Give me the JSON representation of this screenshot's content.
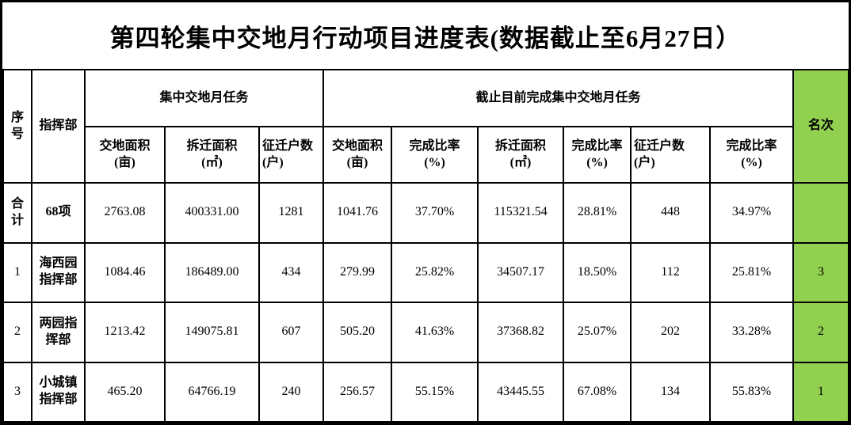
{
  "title": "第四轮集中交地月行动项目进度表(数据截止至6月27日）",
  "colors": {
    "rank_column_bg": "#92d050",
    "grid_border": "#000000",
    "background": "#ffffff"
  },
  "table": {
    "head": {
      "serial": "序号",
      "hq": "指挥部",
      "group_task": "集中交地月任务",
      "group_done": "截止目前完成集中交地月任务",
      "rank": "名次",
      "subs": [
        "交地面积\n(亩)",
        "拆迁面积\n(㎡)",
        "征迁户数\n(户)",
        "交地面积\n(亩)",
        "完成比率\n(%)",
        "拆迁面积\n(㎡)",
        "完成比率\n(%)",
        "征迁户数\n(户)",
        "完成比率\n(%)"
      ]
    },
    "rows": [
      {
        "serial": "合计",
        "hq": "68项",
        "cells": [
          "2763.08",
          "400331.00",
          "1281",
          "1041.76",
          "37.70%",
          "115321.54",
          "28.81%",
          "448",
          "34.97%"
        ],
        "rank": ""
      },
      {
        "serial": "1",
        "hq": "海西园指挥部",
        "cells": [
          "1084.46",
          "186489.00",
          "434",
          "279.99",
          "25.82%",
          "34507.17",
          "18.50%",
          "112",
          "25.81%"
        ],
        "rank": "3"
      },
      {
        "serial": "2",
        "hq": "两园指挥部",
        "cells": [
          "1213.42",
          "149075.81",
          "607",
          "505.20",
          "41.63%",
          "37368.82",
          "25.07%",
          "202",
          "33.28%"
        ],
        "rank": "2"
      },
      {
        "serial": "3",
        "hq": "小城镇指挥部",
        "cells": [
          "465.20",
          "64766.19",
          "240",
          "256.57",
          "55.15%",
          "43445.55",
          "67.08%",
          "134",
          "55.83%"
        ],
        "rank": "1"
      }
    ]
  }
}
